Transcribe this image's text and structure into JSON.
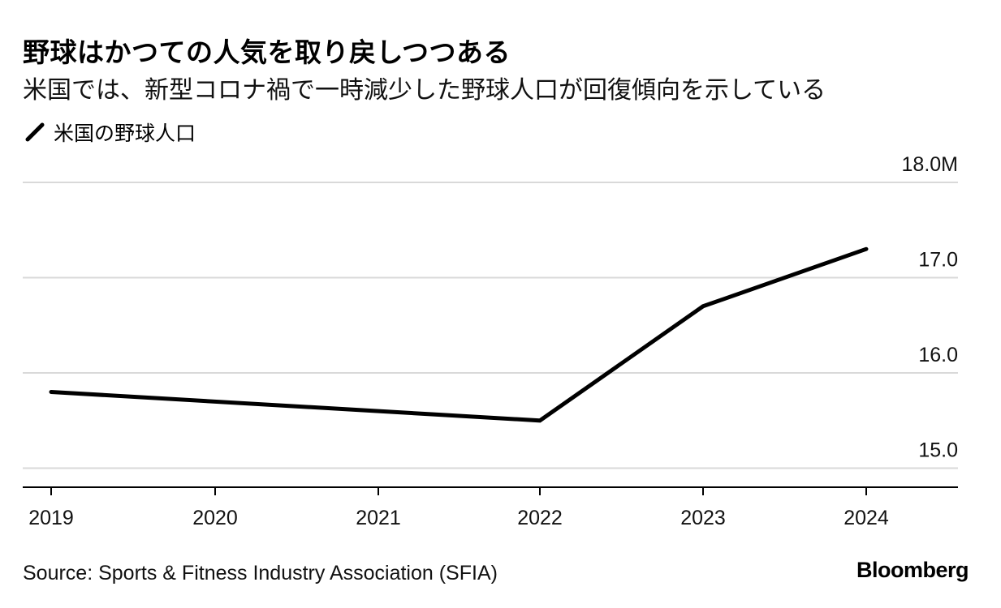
{
  "title": "野球はかつての人気を取り戻しつつある",
  "subtitle": "米国では、新型コロナ禍で一時減少した野球人口が回復傾向を示している",
  "legend": {
    "series_label": "米国の野球人口"
  },
  "source": "Source: Sports & Fitness Industry Association (SFIA)",
  "brand": "Bloomberg",
  "colors": {
    "line": "#000000",
    "grid": "#d9d9d9",
    "axis": "#000000"
  },
  "chart_data": {
    "type": "line",
    "title": "野球はかつての人気を取り戻しつつある",
    "subtitle": "米国では、新型コロナ禍で一時減少した野球人口が回復傾向を示している",
    "xlabel": "",
    "ylabel": "",
    "x": [
      "2019",
      "2020",
      "2021",
      "2022",
      "2023",
      "2024"
    ],
    "series": [
      {
        "name": "米国の野球人口",
        "values": [
          15.8,
          null,
          null,
          15.5,
          16.7,
          17.3
        ]
      }
    ],
    "ylim": [
      14.8,
      18.0
    ],
    "yticks": [
      15.0,
      16.0,
      17.0,
      18.0
    ],
    "ytick_labels": [
      "15.0",
      "16.0",
      "17.0",
      "18.0M"
    ],
    "grid": true,
    "y_axis_side": "right",
    "legend_position": "top-left"
  }
}
